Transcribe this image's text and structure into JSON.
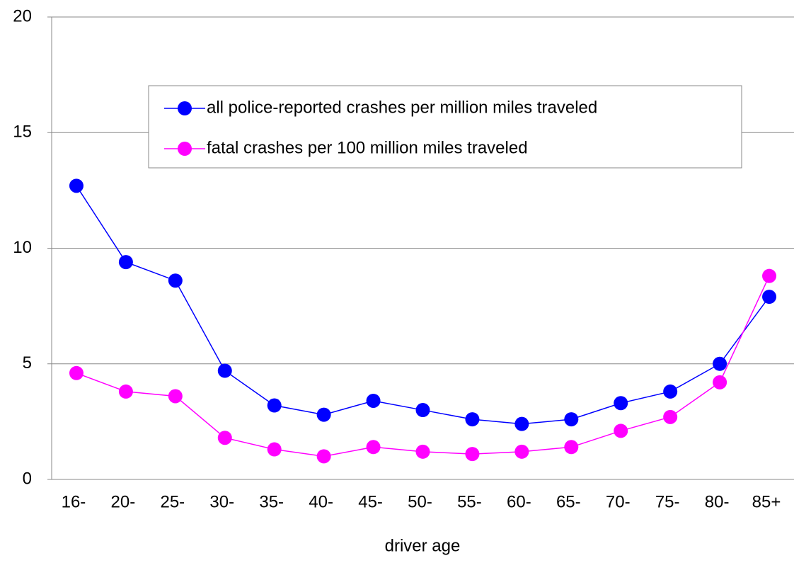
{
  "chart_data": {
    "type": "line",
    "x_label": "driver age",
    "categories": [
      "16-",
      "20-",
      "25-",
      "30-",
      "35-",
      "40-",
      "45-",
      "50-",
      "55-",
      "60-",
      "65-",
      "70-",
      "75-",
      "80-",
      "85+"
    ],
    "series": [
      {
        "name": "all police-reported crashes per million miles traveled",
        "color": "#0000ff",
        "values": [
          12.7,
          9.4,
          8.6,
          4.7,
          3.2,
          2.8,
          3.4,
          3.0,
          2.6,
          2.4,
          2.6,
          3.3,
          3.8,
          5.0,
          7.9
        ]
      },
      {
        "name": "fatal crashes per 100 million miles traveled",
        "color": "#ff00ff",
        "values": [
          4.6,
          3.8,
          3.6,
          1.8,
          1.3,
          1.0,
          1.4,
          1.2,
          1.1,
          1.2,
          1.4,
          2.1,
          2.7,
          4.2,
          8.8
        ]
      }
    ],
    "ylim": [
      0,
      20
    ],
    "yticks": [
      0,
      5,
      10,
      15,
      20
    ],
    "grid": true
  }
}
